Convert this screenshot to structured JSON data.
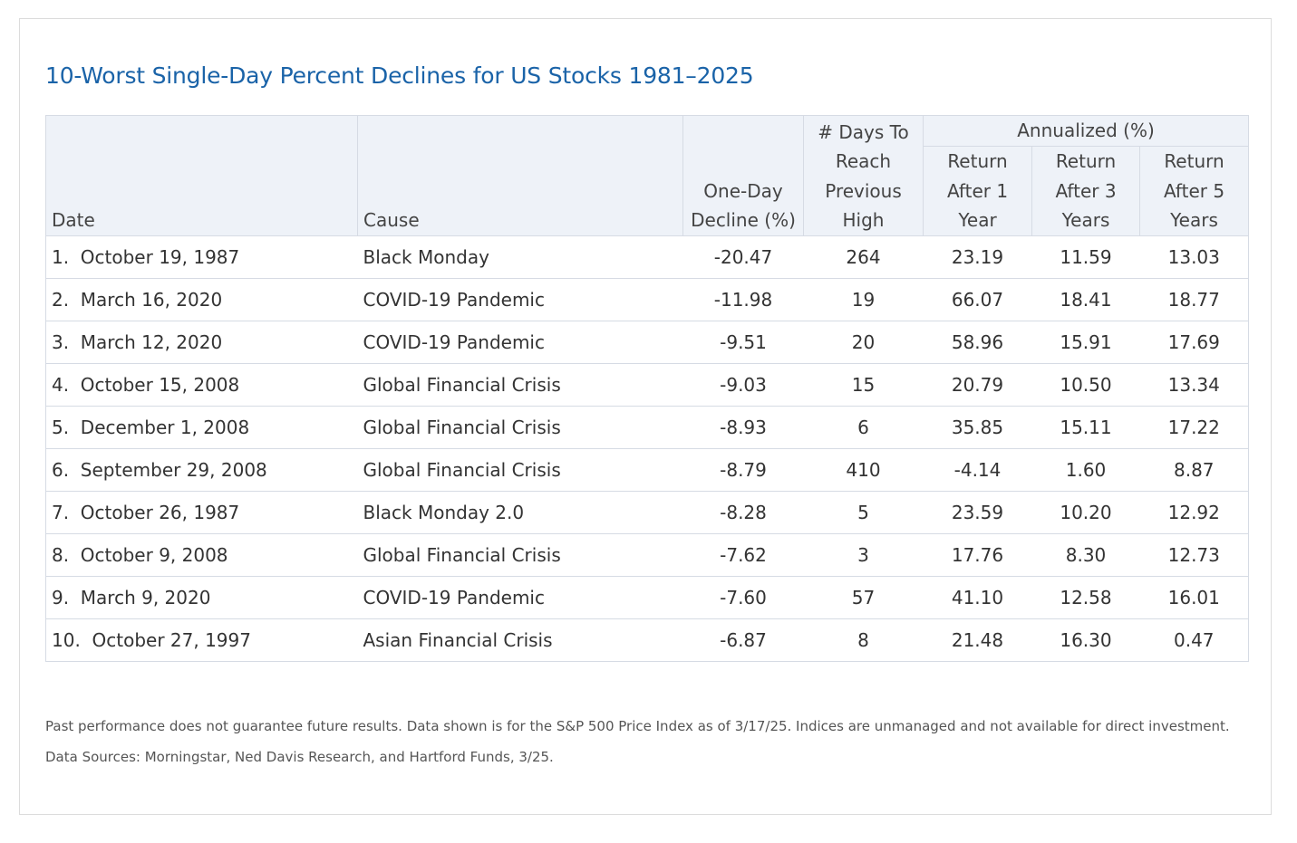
{
  "colors": {
    "title": "#1a63a8",
    "negative": "#b3262c",
    "header_bg": "#eef2f8",
    "border": "#d6dbe4"
  },
  "chart_data": {
    "type": "table",
    "title": "10-Worst Single-Day Percent Declines for US Stocks 1981–2025",
    "group_header": "Annualized (%)",
    "columns": [
      "Date",
      "Cause",
      "One-Day Decline (%)",
      "# Days To Reach Previous High",
      "Return After 1 Year",
      "Return After 3 Years",
      "Return After 5 Years"
    ],
    "header_lines": {
      "date": [
        "Date"
      ],
      "cause": [
        "Cause"
      ],
      "decline": [
        "One-Day",
        "Decline (%)"
      ],
      "days": [
        "# Days To",
        "Reach",
        "Previous",
        "High"
      ],
      "r1": [
        "Return",
        "After 1",
        "Year"
      ],
      "r3": [
        "Return",
        "After 3",
        "Years"
      ],
      "r5": [
        "Return",
        "After 5",
        "Years"
      ]
    },
    "rows": [
      {
        "rank": "1.",
        "date": "October 19, 1987",
        "cause": "Black Monday",
        "decline": -20.47,
        "days": 264,
        "r1": 23.19,
        "r3": 11.59,
        "r5": 13.03
      },
      {
        "rank": "2.",
        "date": "March 16, 2020",
        "cause": "COVID-19 Pandemic",
        "decline": -11.98,
        "days": 19,
        "r1": 66.07,
        "r3": 18.41,
        "r5": 18.77
      },
      {
        "rank": "3.",
        "date": "March 12, 2020",
        "cause": "COVID-19 Pandemic",
        "decline": -9.51,
        "days": 20,
        "r1": 58.96,
        "r3": 15.91,
        "r5": 17.69
      },
      {
        "rank": "4.",
        "date": "October 15, 2008",
        "cause": "Global Financial Crisis",
        "decline": -9.03,
        "days": 15,
        "r1": 20.79,
        "r3": 10.5,
        "r5": 13.34
      },
      {
        "rank": "5.",
        "date": "December 1, 2008",
        "cause": "Global Financial Crisis",
        "decline": -8.93,
        "days": 6,
        "r1": 35.85,
        "r3": 15.11,
        "r5": 17.22
      },
      {
        "rank": "6.",
        "date": "September 29, 2008",
        "cause": "Global Financial Crisis",
        "decline": -8.79,
        "days": 410,
        "r1": -4.14,
        "r3": 1.6,
        "r5": 8.87
      },
      {
        "rank": "7.",
        "date": "October 26, 1987",
        "cause": "Black Monday 2.0",
        "decline": -8.28,
        "days": 5,
        "r1": 23.59,
        "r3": 10.2,
        "r5": 12.92
      },
      {
        "rank": "8.",
        "date": "October 9, 2008",
        "cause": "Global Financial Crisis",
        "decline": -7.62,
        "days": 3,
        "r1": 17.76,
        "r3": 8.3,
        "r5": 12.73
      },
      {
        "rank": "9.",
        "date": "March 9, 2020",
        "cause": "COVID-19 Pandemic",
        "decline": -7.6,
        "days": 57,
        "r1": 41.1,
        "r3": 12.58,
        "r5": 16.01
      },
      {
        "rank": "10.",
        "date": "October 27, 1997",
        "cause": "Asian Financial Crisis",
        "decline": -6.87,
        "days": 8,
        "r1": 21.48,
        "r3": 16.3,
        "r5": 0.47
      }
    ]
  },
  "footnotes": {
    "disclaimer": "Past performance does not guarantee future results. Data shown is for the S&P 500 Price Index as of 3/17/25. Indices are unmanaged and not available for direct investment.",
    "sources": "Data Sources: Morningstar, Ned Davis Research, and Hartford Funds, 3/25."
  }
}
